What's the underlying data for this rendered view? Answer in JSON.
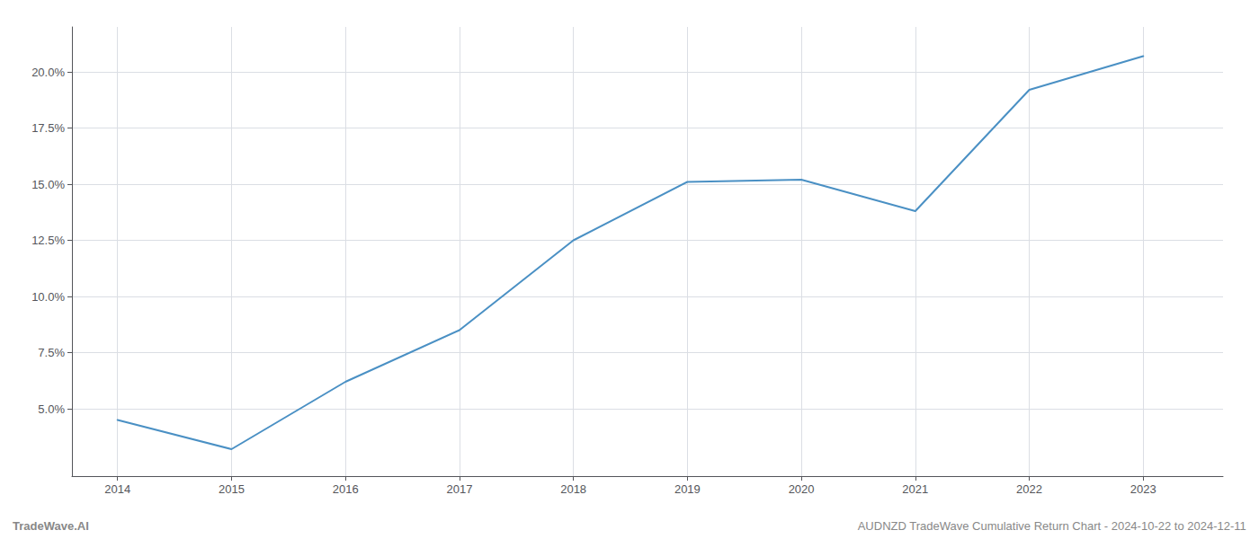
{
  "chart_data": {
    "type": "line",
    "x": [
      2014,
      2015,
      2016,
      2017,
      2018,
      2019,
      2020,
      2021,
      2022,
      2023
    ],
    "values": [
      4.5,
      3.2,
      6.2,
      8.5,
      12.5,
      15.1,
      15.2,
      13.8,
      19.2,
      20.7
    ],
    "color": "#4a90c4",
    "xlim": [
      2013.6,
      2023.7
    ],
    "xticks": [
      2014,
      2015,
      2016,
      2017,
      2018,
      2019,
      2020,
      2021,
      2022,
      2023
    ],
    "ylim": [
      2.0,
      22.0
    ],
    "yticks": [
      {
        "value": 5.0,
        "label": "5.0%"
      },
      {
        "value": 7.5,
        "label": "7.5%"
      },
      {
        "value": 10.0,
        "label": "10.0%"
      },
      {
        "value": 12.5,
        "label": "12.5%"
      },
      {
        "value": 15.0,
        "label": "15.0%"
      },
      {
        "value": 17.5,
        "label": "17.5%"
      },
      {
        "value": 20.0,
        "label": "20.0%"
      }
    ],
    "grid": true,
    "annotations": [
      "TradeWave.AI",
      "AUDNZD TradeWave Cumulative Return Chart - 2024-10-22 to 2024-12-11"
    ]
  }
}
